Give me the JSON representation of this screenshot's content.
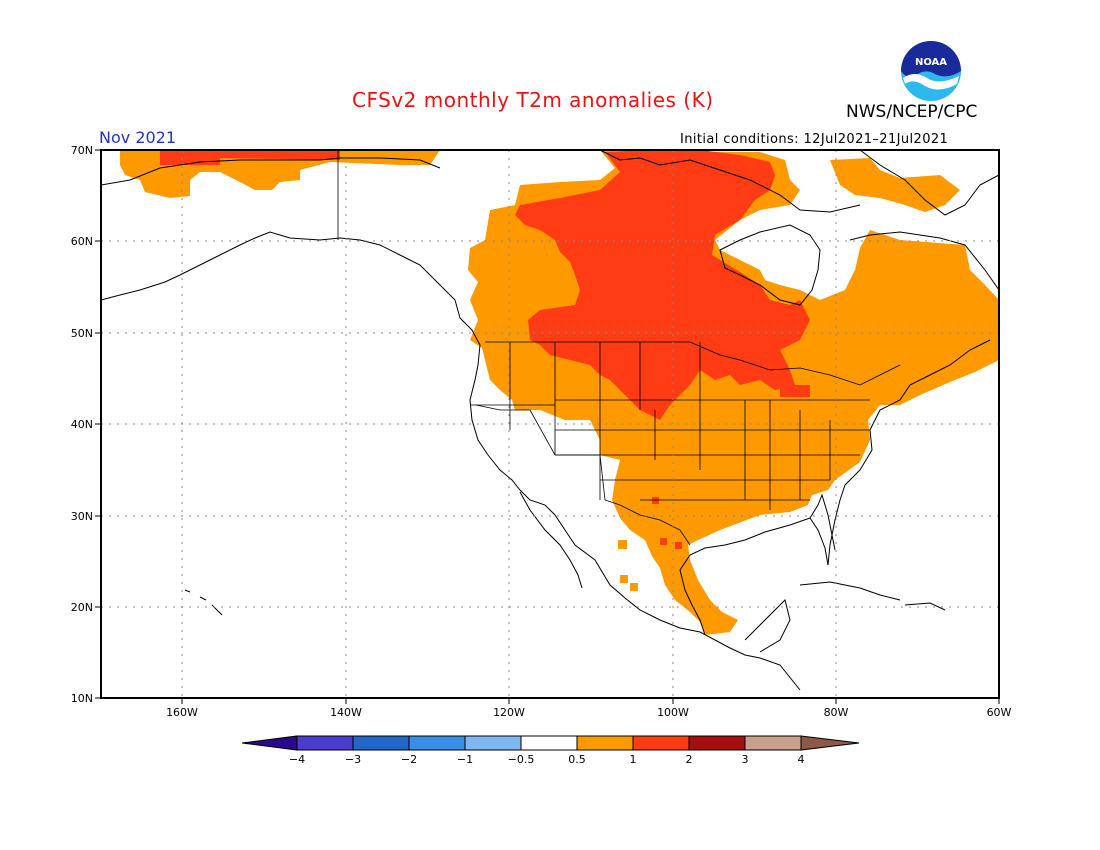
{
  "title": "CFSv2 monthly T2m anomalies (K)",
  "agency": "NWS/NCEP/CPC",
  "logo_text": "NOAA",
  "month": "Nov 2021",
  "initial_conditions": "Initial conditions: 12Jul2021–21Jul2021",
  "lat_labels": [
    "70N",
    "60N",
    "50N",
    "40N",
    "30N",
    "20N",
    "10N"
  ],
  "lon_labels": [
    "160W",
    "140W",
    "120W",
    "100W",
    "80W",
    "60W"
  ],
  "colorbar": {
    "ticks": [
      "−4",
      "−3",
      "−2",
      "−1",
      "−0.5",
      "0.5",
      "1",
      "2",
      "3",
      "4"
    ],
    "colors": [
      "#2a0a8c",
      "#4a3ccc",
      "#2266cc",
      "#3b8ee8",
      "#7fb8f0",
      "#ffffff",
      "#ff9900",
      "#ff3c14",
      "#a50f0f",
      "#c8a08c",
      "#8c5a46"
    ]
  },
  "anomaly_regions": [
    {
      "label": "0.5–1 K",
      "color": "#ff9900"
    },
    {
      "label": "1–2 K",
      "color": "#ff3c14"
    }
  ]
}
